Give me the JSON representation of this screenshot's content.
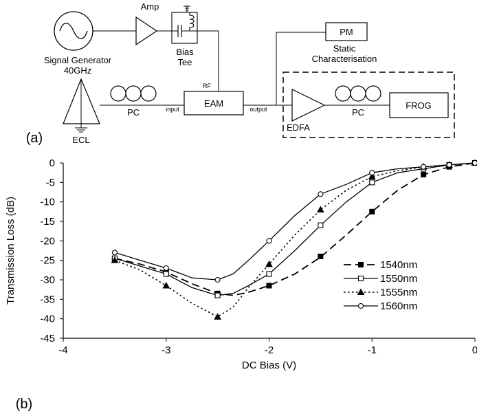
{
  "diagram": {
    "signal_generator": {
      "label_line1": "Signal Generator",
      "label_line2": "40GHz"
    },
    "amp": {
      "label": "Amp"
    },
    "bias_tee": {
      "label_line1": "Bias",
      "label_line2": "Tee"
    },
    "pm": {
      "label": "PM"
    },
    "static_char": {
      "label_line1": "Static",
      "label_line2": "Characterisation"
    },
    "ecl": {
      "label": "ECL"
    },
    "pc1": {
      "label": "PC"
    },
    "eam": {
      "label": "EAM"
    },
    "port_input": "input",
    "port_output": "output",
    "port_rf": "RF",
    "edfa": {
      "label": "EDFA"
    },
    "pc2": {
      "label": "PC"
    },
    "frog": {
      "label": "FROG"
    },
    "panel_a": "(a)"
  },
  "panel_b": "(b)",
  "chart_data": {
    "type": "line",
    "title": "",
    "xlabel": "DC Bias (V)",
    "ylabel": "Transmission Loss (dB)",
    "xlim": [
      -4,
      0
    ],
    "ylim": [
      -45,
      0
    ],
    "xticks": [
      -4,
      -3,
      -2,
      -1,
      0
    ],
    "xtick_labels": [
      "-4",
      "-3",
      "-2",
      "-1",
      "0"
    ],
    "yticks": [
      0,
      -5,
      -10,
      -15,
      -20,
      -25,
      -30,
      -35,
      -40,
      -45
    ],
    "ytick_labels": [
      "0",
      "-5",
      "-10",
      "-15",
      "-20",
      "-25",
      "-30",
      "-35",
      "-40",
      "-45"
    ],
    "grid": false,
    "legend_position": "right",
    "series": [
      {
        "name": "1540nm",
        "marker": "filled-square",
        "dash": "long-dash",
        "x": [
          -3.5,
          -3,
          -2.5,
          -2,
          -1.5,
          -1,
          -0.5,
          -0.25,
          0
        ],
        "y": [
          -24.5,
          -28,
          -33.5,
          -31.5,
          -24,
          -12.5,
          -3,
          -1,
          0
        ],
        "curve_x": [
          -3.5,
          -3.25,
          -3,
          -2.75,
          -2.5,
          -2.35,
          -2.2,
          -2,
          -1.75,
          -1.5,
          -1.25,
          -1,
          -0.75,
          -0.5,
          -0.25,
          0
        ],
        "curve_y": [
          -24.5,
          -26,
          -28,
          -31,
          -33.5,
          -34,
          -33.2,
          -31.5,
          -28.5,
          -24.2,
          -18.5,
          -12.5,
          -7,
          -3,
          -1,
          0
        ]
      },
      {
        "name": "1550nm",
        "marker": "open-square",
        "dash": "solid",
        "x": [
          -3.5,
          -3,
          -2.5,
          -2,
          -1.5,
          -1,
          -0.5,
          -0.25,
          0
        ],
        "y": [
          -24.5,
          -28.5,
          -34,
          -28.5,
          -16,
          -5,
          -1.5,
          -0.5,
          0
        ],
        "curve_x": [
          -3.5,
          -3.25,
          -3,
          -2.75,
          -2.5,
          -2.35,
          -2.2,
          -2,
          -1.75,
          -1.5,
          -1.25,
          -1,
          -0.75,
          -0.5,
          -0.25,
          0
        ],
        "curve_y": [
          -24.5,
          -26.5,
          -28.5,
          -32,
          -34,
          -33.5,
          -31.5,
          -28.5,
          -22.5,
          -16,
          -10,
          -5,
          -2.5,
          -1.5,
          -0.5,
          0
        ]
      },
      {
        "name": "1555nm",
        "marker": "filled-triangle",
        "dash": "dotted",
        "x": [
          -3.5,
          -3,
          -2.5,
          -2,
          -1.5,
          -1,
          -0.5,
          -0.25,
          0
        ],
        "y": [
          -25,
          -31.5,
          -39.5,
          -26,
          -12,
          -3.5,
          -1,
          -0.5,
          0
        ],
        "curve_x": [
          -3.5,
          -3.25,
          -3,
          -2.75,
          -2.5,
          -2.35,
          -2.2,
          -2,
          -1.75,
          -1.5,
          -1.25,
          -1,
          -0.75,
          -0.5,
          -0.25,
          0
        ],
        "curve_y": [
          -25,
          -27.5,
          -31.5,
          -36,
          -39.5,
          -37,
          -32,
          -26,
          -18.5,
          -12,
          -7,
          -3.5,
          -2,
          -1,
          -0.5,
          0
        ]
      },
      {
        "name": "1560nm",
        "marker": "open-circle",
        "dash": "solid",
        "x": [
          -3.5,
          -3,
          -2.5,
          -2,
          -1.5,
          -1,
          -0.5,
          -0.25,
          0
        ],
        "y": [
          -23,
          -27,
          -30,
          -20,
          -8,
          -2.5,
          -1,
          -0.5,
          0
        ],
        "curve_x": [
          -3.5,
          -3.25,
          -3,
          -2.75,
          -2.5,
          -2.35,
          -2.2,
          -2,
          -1.75,
          -1.5,
          -1.25,
          -1,
          -0.75,
          -0.5,
          -0.25,
          0
        ],
        "curve_y": [
          -23,
          -25,
          -27,
          -29.5,
          -30,
          -28.5,
          -25,
          -20,
          -13.5,
          -8,
          -5.5,
          -2.5,
          -1.5,
          -1,
          -0.5,
          0
        ]
      }
    ]
  }
}
